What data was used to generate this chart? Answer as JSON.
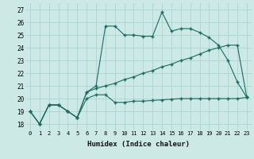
{
  "background_color": "#cce9e6",
  "grid_color": "#a8d5d0",
  "line_color": "#1a6b62",
  "xlabel": "Humidex (Indice chaleur)",
  "x_ticks": [
    0,
    1,
    2,
    3,
    4,
    5,
    6,
    7,
    8,
    9,
    10,
    11,
    12,
    13,
    14,
    15,
    16,
    17,
    18,
    19,
    20,
    21,
    22,
    23
  ],
  "y_ticks": [
    18,
    19,
    20,
    21,
    22,
    23,
    24,
    25,
    26,
    27
  ],
  "ylim": [
    17.5,
    27.5
  ],
  "xlim": [
    -0.5,
    23.5
  ],
  "series1": [
    19,
    18,
    19.5,
    19.5,
    19.0,
    18.5,
    20.5,
    21.0,
    25.7,
    25.7,
    25.0,
    25.0,
    24.9,
    24.9,
    26.8,
    25.3,
    25.5,
    25.5,
    25.2,
    24.8,
    24.2,
    23.0,
    21.3,
    20.1
  ],
  "series2": [
    19,
    18,
    19.5,
    19.5,
    19.0,
    18.5,
    20.0,
    20.3,
    20.3,
    19.7,
    19.7,
    19.8,
    19.8,
    19.85,
    19.9,
    19.95,
    20.0,
    20.0,
    20.0,
    20.0,
    20.0,
    20.0,
    20.0,
    20.1
  ],
  "series3": [
    19,
    18,
    19.5,
    19.5,
    19.0,
    18.5,
    20.5,
    20.8,
    21.0,
    21.2,
    21.5,
    21.7,
    22.0,
    22.2,
    22.5,
    22.7,
    23.0,
    23.2,
    23.5,
    23.8,
    24.0,
    24.2,
    24.2,
    20.1
  ]
}
